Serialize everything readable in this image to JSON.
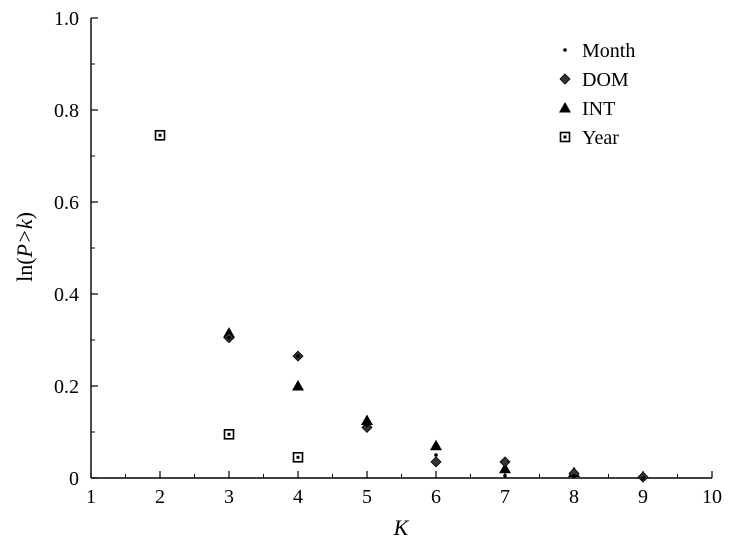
{
  "chart_data": {
    "type": "scatter",
    "xlim": [
      1,
      10
    ],
    "ylim": [
      0,
      1.0
    ],
    "x_ticks": [
      "1",
      "2",
      "3",
      "4",
      "5",
      "6",
      "7",
      "8",
      "9",
      "10"
    ],
    "y_ticks": [
      "0",
      "0.2",
      "0.4",
      "0.6",
      "0.8",
      "1.0"
    ],
    "xlabel": "K",
    "ylabel_prefix": "ln(",
    "ylabel_italic": "P>k",
    "ylabel_suffix": ")",
    "grid": false,
    "legend_position": "top-right",
    "series": [
      {
        "name": "Month",
        "marker": "dot",
        "points": [
          {
            "x": 3,
            "y": 0.305
          },
          {
            "x": 4,
            "y": 0.265
          },
          {
            "x": 5,
            "y": 0.115
          },
          {
            "x": 6,
            "y": 0.05
          },
          {
            "x": 7,
            "y": 0.005
          },
          {
            "x": 8,
            "y": 0.005
          },
          {
            "x": 9,
            "y": 0.0
          }
        ]
      },
      {
        "name": "DOM",
        "marker": "diamond",
        "points": [
          {
            "x": 3,
            "y": 0.305
          },
          {
            "x": 4,
            "y": 0.265
          },
          {
            "x": 5,
            "y": 0.11
          },
          {
            "x": 6,
            "y": 0.035
          },
          {
            "x": 7,
            "y": 0.035
          },
          {
            "x": 8,
            "y": 0.01
          },
          {
            "x": 9,
            "y": 0.002
          }
        ]
      },
      {
        "name": "INT",
        "marker": "triangle",
        "points": [
          {
            "x": 3,
            "y": 0.315
          },
          {
            "x": 4,
            "y": 0.2
          },
          {
            "x": 5,
            "y": 0.125
          },
          {
            "x": 6,
            "y": 0.07
          },
          {
            "x": 7,
            "y": 0.02
          },
          {
            "x": 8,
            "y": 0.012
          }
        ]
      },
      {
        "name": "Year",
        "marker": "square-dot",
        "points": [
          {
            "x": 2,
            "y": 0.745
          },
          {
            "x": 3,
            "y": 0.095
          },
          {
            "x": 4,
            "y": 0.045
          }
        ]
      }
    ]
  }
}
